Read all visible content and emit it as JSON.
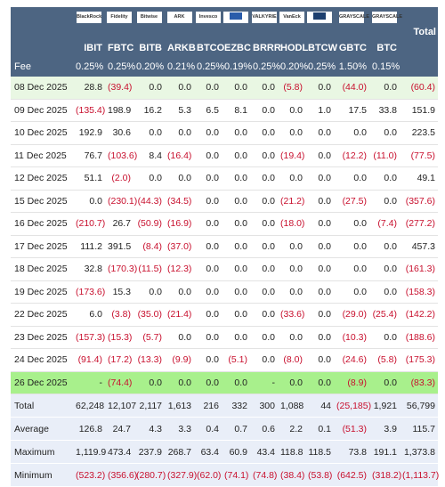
{
  "header": {
    "logos": [
      "BlackRock",
      "Fidelity",
      "Bitwise",
      "ARK",
      "Invesco",
      null,
      "VALKYRIE",
      "VanEck",
      null,
      "GRAYSCALE",
      "GRAYSCALE"
    ],
    "total": "Total",
    "tickers": [
      "IBIT",
      "FBTC",
      "BITB",
      "ARKB",
      "BTCO",
      "EZBC",
      "BRRR",
      "HODL",
      "BTCW",
      "GBTC",
      "BTC"
    ],
    "fee_label": "Fee",
    "fees": [
      "0.25%",
      "0.25%",
      "0.20%",
      "0.21%",
      "0.25%",
      "0.19%",
      "0.25%",
      "0.20%",
      "0.25%",
      "1.50%",
      "0.15%"
    ]
  },
  "table": {
    "rows": [
      [
        "08 Dec 2025",
        "28.8",
        "(39.4)",
        "0.0",
        "0.0",
        "0.0",
        "0.0",
        "0.0",
        "(5.8)",
        "0.0",
        "(44.0)",
        "0.0",
        "(60.4)"
      ],
      [
        "09 Dec 2025",
        "(135.4)",
        "198.9",
        "16.2",
        "5.3",
        "6.5",
        "8.1",
        "0.0",
        "0.0",
        "1.0",
        "17.5",
        "33.8",
        "151.9"
      ],
      [
        "10 Dec 2025",
        "192.9",
        "30.6",
        "0.0",
        "0.0",
        "0.0",
        "0.0",
        "0.0",
        "0.0",
        "0.0",
        "0.0",
        "0.0",
        "223.5"
      ],
      [
        "11 Dec 2025",
        "76.7",
        "(103.6)",
        "8.4",
        "(16.4)",
        "0.0",
        "0.0",
        "0.0",
        "(19.4)",
        "0.0",
        "(12.2)",
        "(11.0)",
        "(77.5)"
      ],
      [
        "12 Dec 2025",
        "51.1",
        "(2.0)",
        "0.0",
        "0.0",
        "0.0",
        "0.0",
        "0.0",
        "0.0",
        "0.0",
        "0.0",
        "0.0",
        "49.1"
      ],
      [
        "15 Dec 2025",
        "0.0",
        "(230.1)",
        "(44.3)",
        "(34.5)",
        "0.0",
        "0.0",
        "0.0",
        "(21.2)",
        "0.0",
        "(27.5)",
        "0.0",
        "(357.6)"
      ],
      [
        "16 Dec 2025",
        "(210.7)",
        "26.7",
        "(50.9)",
        "(16.9)",
        "0.0",
        "0.0",
        "0.0",
        "(18.0)",
        "0.0",
        "0.0",
        "(7.4)",
        "(277.2)"
      ],
      [
        "17 Dec 2025",
        "111.2",
        "391.5",
        "(8.4)",
        "(37.0)",
        "0.0",
        "0.0",
        "0.0",
        "0.0",
        "0.0",
        "0.0",
        "0.0",
        "457.3"
      ],
      [
        "18 Dec 2025",
        "32.8",
        "(170.3)",
        "(11.5)",
        "(12.3)",
        "0.0",
        "0.0",
        "0.0",
        "0.0",
        "0.0",
        "0.0",
        "0.0",
        "(161.3)"
      ],
      [
        "19 Dec 2025",
        "(173.6)",
        "15.3",
        "0.0",
        "0.0",
        "0.0",
        "0.0",
        "0.0",
        "0.0",
        "0.0",
        "0.0",
        "0.0",
        "(158.3)"
      ],
      [
        "22 Dec 2025",
        "6.0",
        "(3.8)",
        "(35.0)",
        "(21.4)",
        "0.0",
        "0.0",
        "0.0",
        "(33.6)",
        "0.0",
        "(29.0)",
        "(25.4)",
        "(142.2)"
      ],
      [
        "23 Dec 2025",
        "(157.3)",
        "(15.3)",
        "(5.7)",
        "0.0",
        "0.0",
        "0.0",
        "0.0",
        "0.0",
        "0.0",
        "(10.3)",
        "0.0",
        "(188.6)"
      ],
      [
        "24 Dec 2025",
        "(91.4)",
        "(17.2)",
        "(13.3)",
        "(9.9)",
        "0.0",
        "(5.1)",
        "0.0",
        "(8.0)",
        "0.0",
        "(24.6)",
        "(5.8)",
        "(175.3)"
      ],
      [
        "26 Dec 2025",
        "-",
        "(74.4)",
        "0.0",
        "0.0",
        "0.0",
        "0.0",
        "-",
        "0.0",
        "0.0",
        "(8.9)",
        "0.0",
        "(83.3)"
      ]
    ],
    "summary": [
      [
        "Total",
        "62,248",
        "12,107",
        "2,117",
        "1,613",
        "216",
        "332",
        "300",
        "1,088",
        "44",
        "(25,185)",
        "1,921",
        "56,799"
      ],
      [
        "Average",
        "126.8",
        "24.7",
        "4.3",
        "3.3",
        "0.4",
        "0.7",
        "0.6",
        "2.2",
        "0.1",
        "(51.3)",
        "3.9",
        "115.7"
      ],
      [
        "Maximum",
        "1,119.9",
        "473.4",
        "237.9",
        "268.7",
        "63.4",
        "60.9",
        "43.4",
        "118.8",
        "118.5",
        "73.8",
        "191.1",
        "1,373.8"
      ],
      [
        "Minimum",
        "(523.2)",
        "(356.6)",
        "(280.7)",
        "(327.9)",
        "(62.0)",
        "(74.1)",
        "(74.8)",
        "(38.4)",
        "(53.8)",
        "(642.5)",
        "(318.2)",
        "(1,113.7)"
      ]
    ]
  }
}
